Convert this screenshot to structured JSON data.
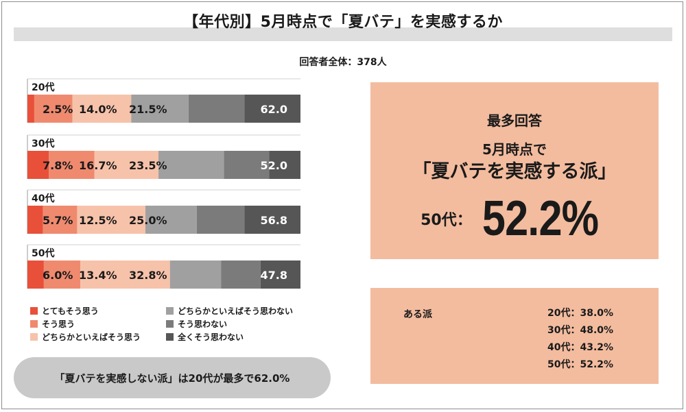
{
  "title": "【年代別】5月時点で「夏バテ」を実感するか",
  "respondents": "回答者全体：378人",
  "legend": [
    {
      "label": "とてもそう思う",
      "color": "#e8503a"
    },
    {
      "label": "そう思う",
      "color": "#ef8a6f"
    },
    {
      "label": "どちらかといえばそう思う",
      "color": "#f7c2aa"
    },
    {
      "label": "どちらかといえばそう思わない",
      "color": "#a0a0a0"
    },
    {
      "label": "そう思わない",
      "color": "#7b7b7b"
    },
    {
      "label": "全くそう思わない",
      "color": "#565656"
    }
  ],
  "summary_pill": "「夏バテを実感しない派」は20代が最多で62.0%",
  "max_box": {
    "heading": "最多回答",
    "line1": "5月時点で",
    "line2": "「夏バテを実感する派」",
    "prefix": "50代：",
    "value": "52.2%"
  },
  "aru_box": {
    "label": "ある派",
    "rows": [
      "20代：38.0%",
      "30代：48.0%",
      "40代：43.2%",
      "50代：52.2%"
    ]
  },
  "chart_data": {
    "type": "bar",
    "orientation": "horizontal",
    "stacked": true,
    "categories": [
      "20代",
      "30代",
      "40代",
      "50代"
    ],
    "xlim": [
      0,
      100
    ],
    "series": [
      {
        "name": "とてもそう思う",
        "values": [
          2.5,
          7.8,
          5.7,
          6.0
        ],
        "labels": [
          "2.5%",
          "7.8%",
          "5.7%",
          "6.0%"
        ]
      },
      {
        "name": "そう思う",
        "values": [
          14.0,
          16.7,
          12.5,
          13.4
        ],
        "labels": [
          "14.0%",
          "16.7%",
          "12.5%",
          "13.4%"
        ]
      },
      {
        "name": "どちらかといえばそう思う",
        "values": [
          21.5,
          23.5,
          25.0,
          32.8
        ],
        "labels": [
          "21.5%",
          "23.5%",
          "25.0%",
          "32.8%"
        ]
      },
      {
        "name": "どちらかといえばそう思わない",
        "values": [
          21.0,
          24.0,
          18.8,
          18.7
        ]
      },
      {
        "name": "そう思わない",
        "values": [
          20.5,
          16.5,
          17.5,
          14.5
        ]
      },
      {
        "name": "全くそう思わない",
        "values": [
          20.5,
          11.5,
          20.5,
          14.6
        ]
      }
    ],
    "nai_totals": [
      "62.0",
      "52.0",
      "56.8",
      "47.8"
    ]
  }
}
